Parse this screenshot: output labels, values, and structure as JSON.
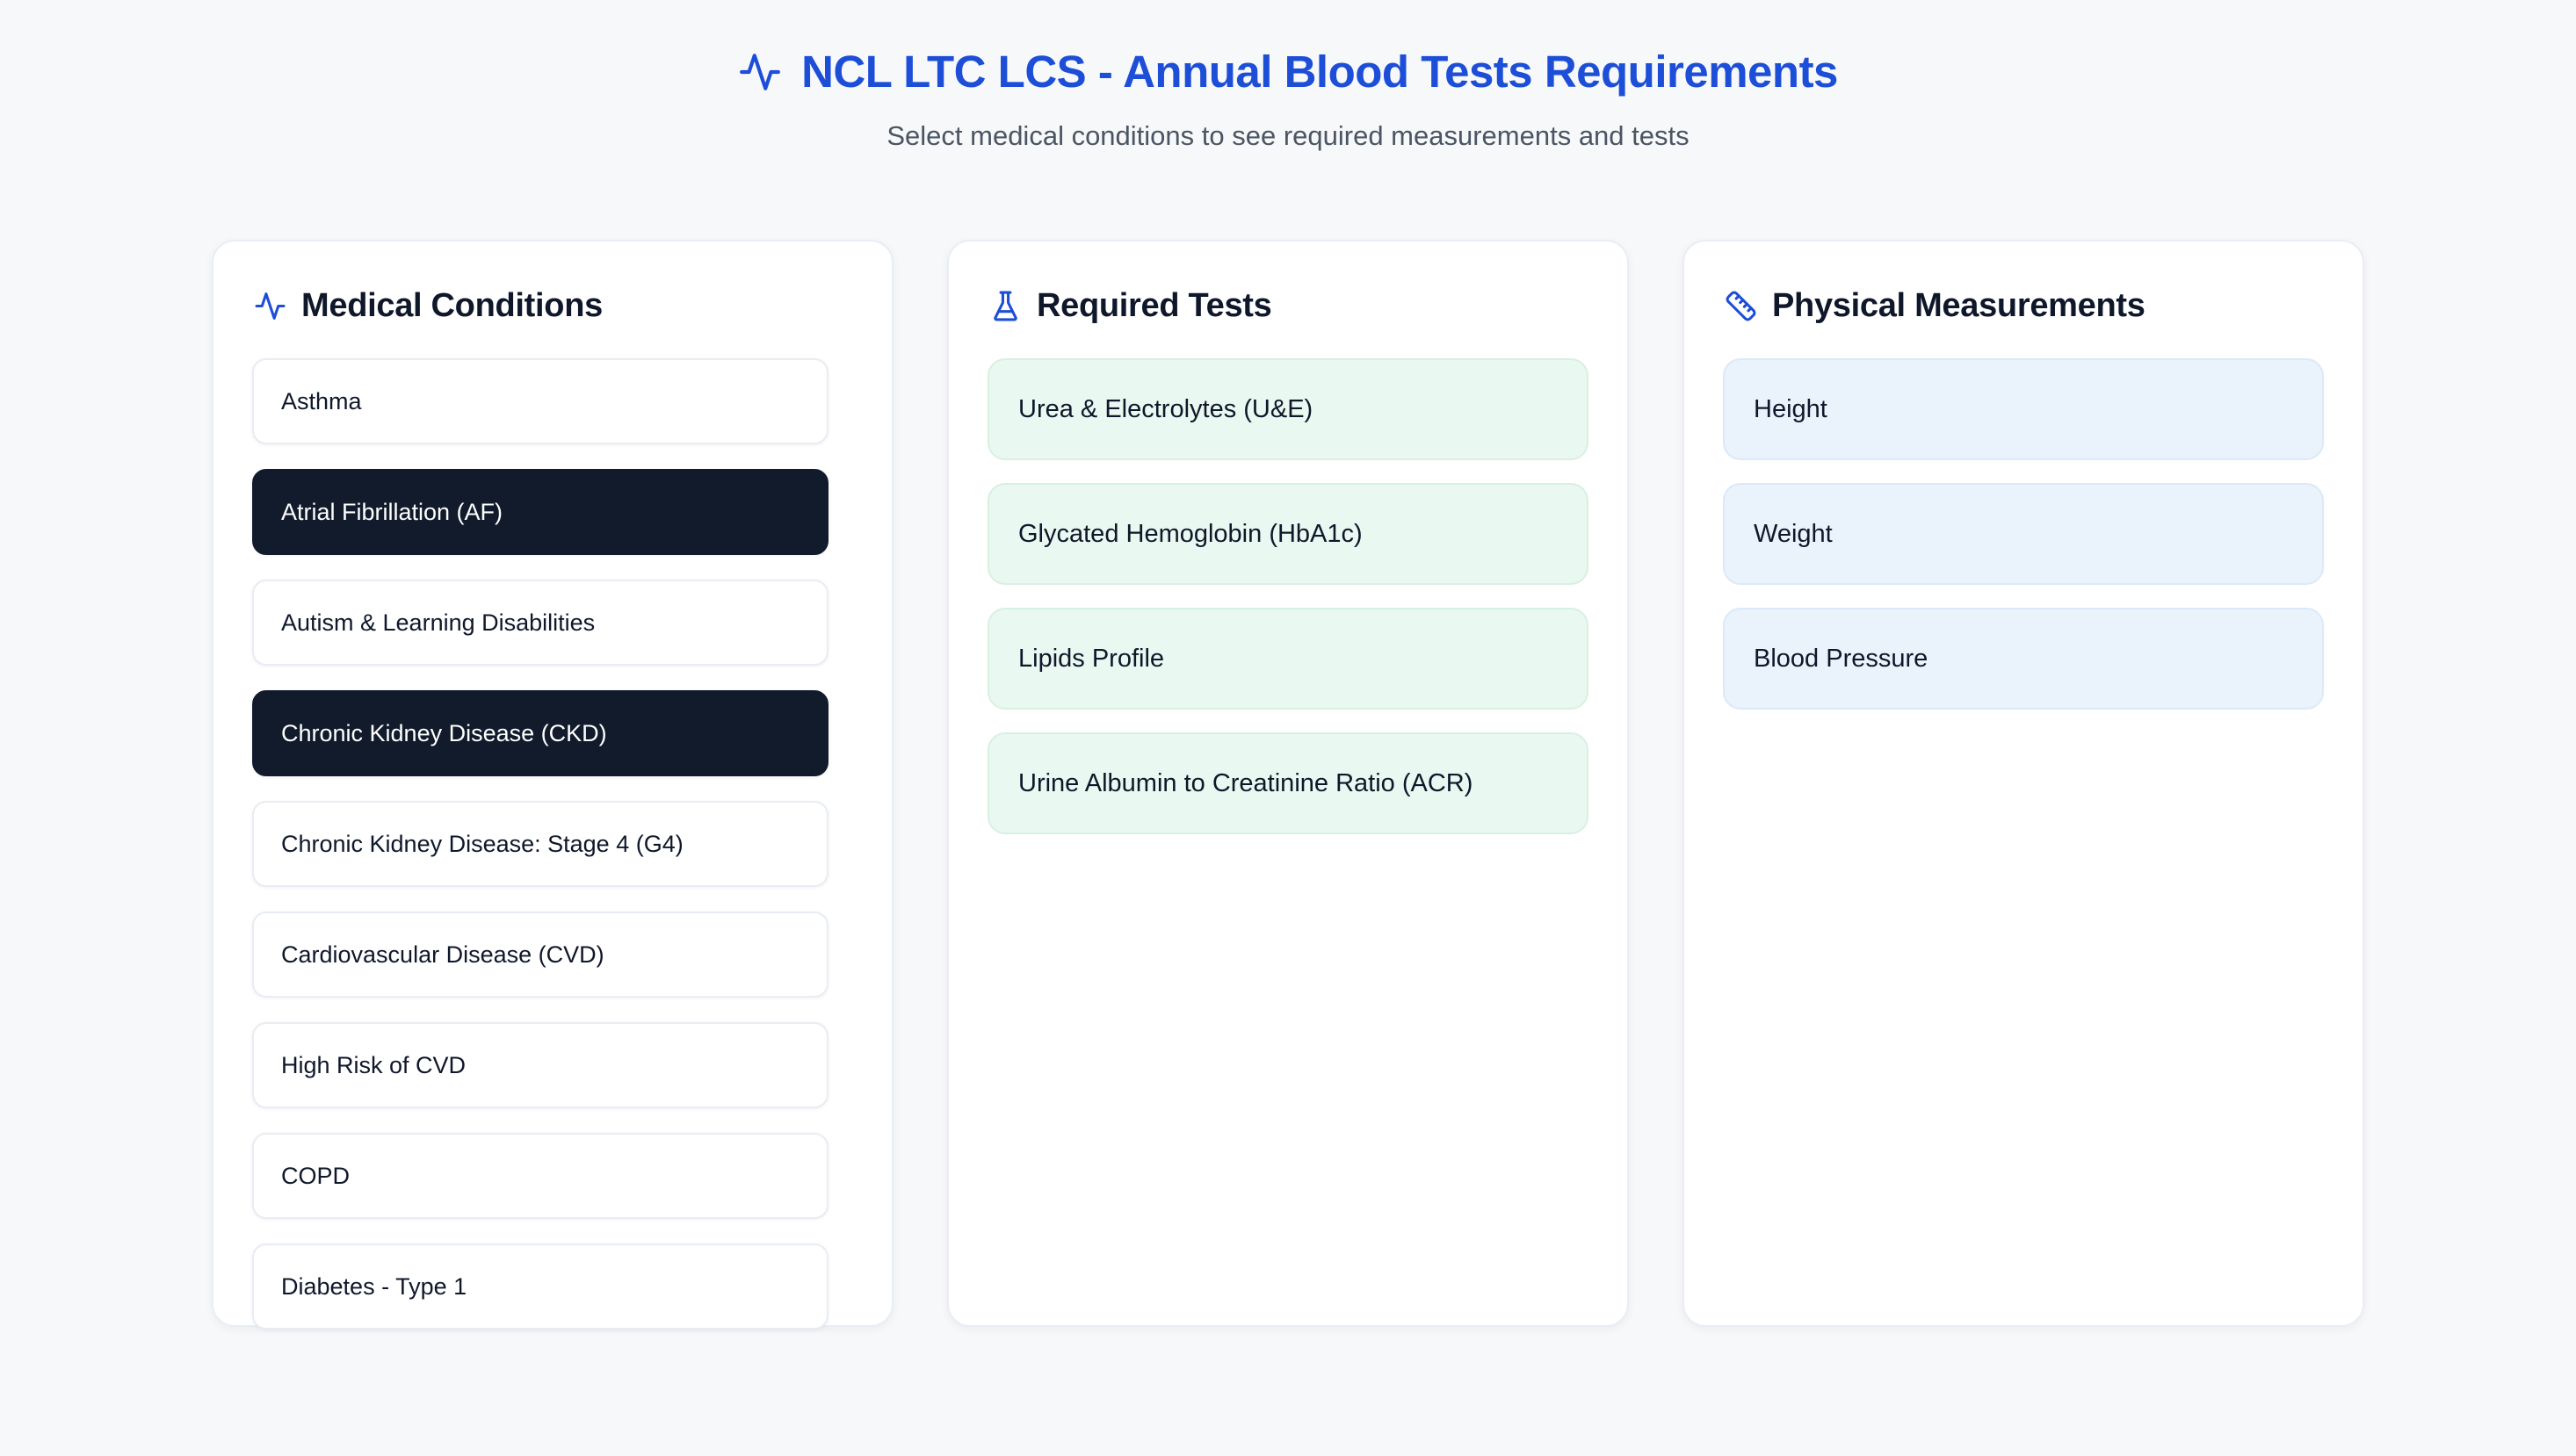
{
  "header": {
    "title": "NCL LTC LCS - Annual Blood Tests Requirements",
    "subtitle": "Select medical conditions to see required measurements and tests"
  },
  "panels": {
    "conditions": {
      "title": "Medical Conditions",
      "icon": "activity-icon",
      "items": [
        {
          "label": "Asthma",
          "selected": false
        },
        {
          "label": "Atrial Fibrillation (AF)",
          "selected": true
        },
        {
          "label": "Autism & Learning Disabilities",
          "selected": false
        },
        {
          "label": "Chronic Kidney Disease (CKD)",
          "selected": true
        },
        {
          "label": "Chronic Kidney Disease: Stage 4 (G4)",
          "selected": false
        },
        {
          "label": "Cardiovascular Disease (CVD)",
          "selected": false
        },
        {
          "label": "High Risk of CVD",
          "selected": false
        },
        {
          "label": "COPD",
          "selected": false
        },
        {
          "label": "Diabetes - Type 1",
          "selected": false
        }
      ]
    },
    "tests": {
      "title": "Required Tests",
      "icon": "flask-icon",
      "items": [
        "Urea & Electrolytes (U&E)",
        "Glycated Hemoglobin (HbA1c)",
        "Lipids Profile",
        "Urine Albumin to Creatinine Ratio (ACR)"
      ]
    },
    "measurements": {
      "title": "Physical Measurements",
      "icon": "ruler-icon",
      "items": [
        "Height",
        "Weight",
        "Blood Pressure"
      ]
    }
  },
  "colors": {
    "accent": "#1d4ed8",
    "heading": "#0f172a",
    "subtitle": "#4b5563",
    "page-bg": "#f7f8fa",
    "panel-border": "#e9edf4",
    "card-border": "#e8edf3",
    "selected-bg": "#111b2c",
    "test-bg": "#e9f8f0",
    "test-border": "#d8f0e2",
    "measure-bg": "#eaf2fc",
    "measure-border": "#dce9f8"
  }
}
